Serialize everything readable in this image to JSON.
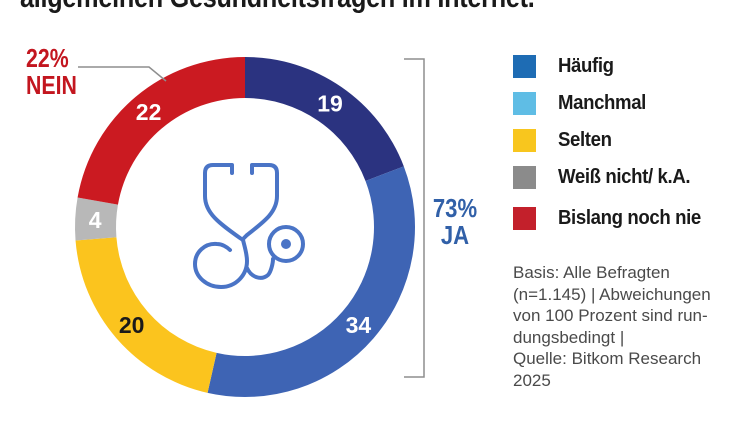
{
  "title": "allgemeinen Gesundheitsfragen im Internet.",
  "chart_data": {
    "type": "pie",
    "variant": "donut",
    "categories": [
      "Häufig",
      "Manchmal",
      "Selten",
      "Weiß nicht/ k.A.",
      "Bislang noch nie"
    ],
    "values": [
      19,
      34,
      20,
      4,
      22
    ],
    "segment_colors": [
      "#2b3380",
      "#3e64b4",
      "#fbc41e",
      "#b8b8b8",
      "#cb1a21"
    ],
    "value_label_colors": [
      "#ffffff",
      "#ffffff",
      "#1a1a1a",
      "#ffffff",
      "#ffffff"
    ],
    "start_angle_deg": 0,
    "direction": "clockwise",
    "legend_position": "right",
    "center_icon": "stethoscope-icon",
    "annotations": [
      {
        "id": "ja",
        "percent": "73%",
        "word": "JA",
        "value": 73,
        "color": "#3160a8",
        "side": "right"
      },
      {
        "id": "nein",
        "percent": "22%",
        "word": "NEIN",
        "value": 22,
        "color": "#c3161f",
        "side": "left"
      }
    ]
  },
  "legend": {
    "items": [
      {
        "label": "Häufig",
        "color": "#1e6cb4"
      },
      {
        "label": "Manchmal",
        "color": "#5fbde5"
      },
      {
        "label": "Selten",
        "color": "#f8c61e"
      },
      {
        "label": "Weiß nicht/ k.A.",
        "color": "#8b8b8b"
      },
      {
        "label": "Bislang noch nie",
        "color": "#c3202b"
      }
    ]
  },
  "source": {
    "lines": [
      "Basis: Alle Befragten",
      "(n=1.145) | Abweichungen",
      "von 100 Prozent sind run-",
      "dungsbedingt |",
      "Quelle: Bitkom Research",
      "2025"
    ]
  }
}
